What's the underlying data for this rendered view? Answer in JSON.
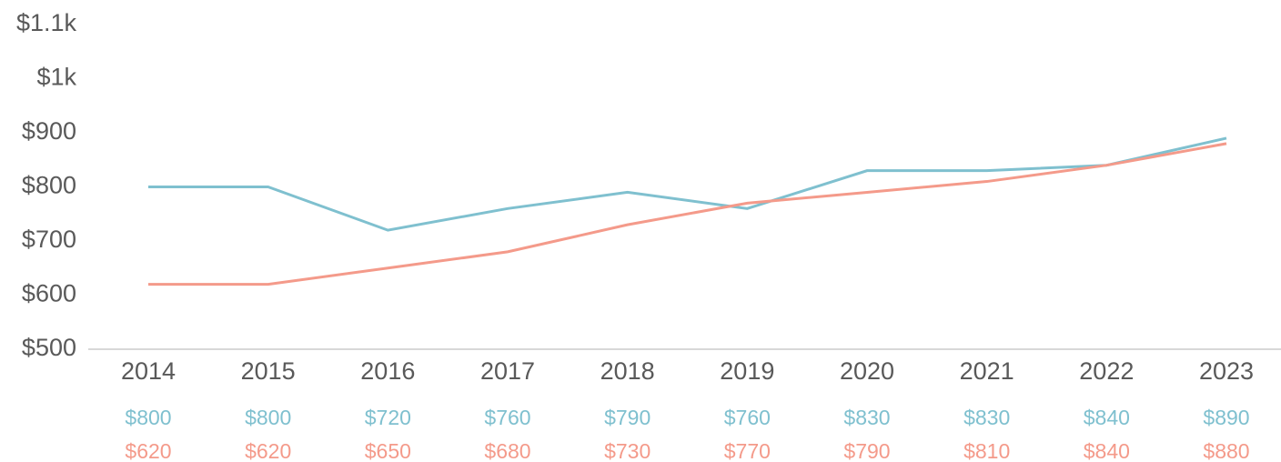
{
  "chart_data": {
    "type": "line",
    "categories": [
      "2014",
      "2015",
      "2016",
      "2017",
      "2018",
      "2019",
      "2020",
      "2021",
      "2022",
      "2023"
    ],
    "series": [
      {
        "color": "#7fc0cf",
        "values": [
          800,
          800,
          720,
          760,
          790,
          760,
          830,
          830,
          840,
          890
        ],
        "value_labels": [
          "$800",
          "$800",
          "$720",
          "$760",
          "$790",
          "$760",
          "$830",
          "$830",
          "$840",
          "$890"
        ]
      },
      {
        "color": "#f49a8a",
        "values": [
          620,
          620,
          650,
          680,
          730,
          770,
          790,
          810,
          840,
          880
        ],
        "value_labels": [
          "$620",
          "$620",
          "$650",
          "$680",
          "$730",
          "$770",
          "$790",
          "$810",
          "$840",
          "$880"
        ]
      }
    ],
    "ylim": [
      500,
      1100
    ],
    "yticks": [
      {
        "value": 500,
        "label": "$500"
      },
      {
        "value": 600,
        "label": "$600"
      },
      {
        "value": 700,
        "label": "$700"
      },
      {
        "value": 800,
        "label": "$800"
      },
      {
        "value": 900,
        "label": "$900"
      },
      {
        "value": 1000,
        "label": "$1k"
      },
      {
        "value": 1100,
        "label": "$1.1k"
      }
    ],
    "grid": false
  }
}
